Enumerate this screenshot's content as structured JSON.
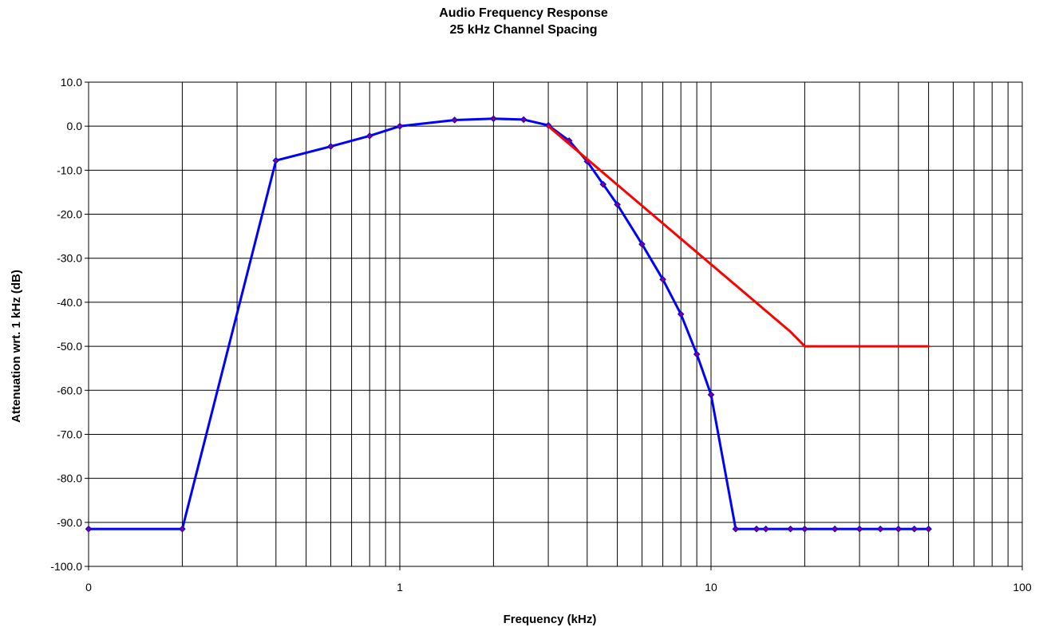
{
  "chart_data": {
    "type": "line",
    "title": "Audio Frequency Response",
    "subtitle": "25 kHz Channel Spacing",
    "xlabel": "Frequency (kHz)",
    "ylabel": "Attenuation wrt. 1 kHz (dB)",
    "x_scale": "log",
    "xlim": [
      0.1,
      100
    ],
    "ylim": [
      -100,
      10
    ],
    "x_tick_labels": [
      {
        "value": 0.1,
        "label": "0"
      },
      {
        "value": 1,
        "label": "1"
      },
      {
        "value": 10,
        "label": "10"
      },
      {
        "value": 100,
        "label": "100"
      }
    ],
    "y_ticks": [
      10,
      0,
      -10,
      -20,
      -30,
      -40,
      -50,
      -60,
      -70,
      -80,
      -90,
      -100
    ],
    "y_tick_labels": [
      "10.0",
      "0.0",
      "-10.0",
      "-20.0",
      "-30.0",
      "-40.0",
      "-50.0",
      "-60.0",
      "-70.0",
      "-80.0",
      "-90.0",
      "-100.0"
    ],
    "grid": true,
    "legend": "none",
    "series": [
      {
        "color": "#0000ff",
        "marker_color": "#800080",
        "markers": true,
        "x": [
          0.1,
          0.2,
          0.4,
          0.6,
          0.8,
          1.0,
          1.5,
          2.0,
          2.5,
          3.0,
          3.5,
          4.0,
          4.5,
          5.0,
          6.0,
          7.0,
          8.0,
          9.0,
          10.0,
          12.0,
          14.0,
          15.0,
          18.0,
          20.0,
          25.0,
          30.0,
          35.0,
          40.0,
          45.0,
          50.0
        ],
        "y": [
          -91.5,
          -91.5,
          -7.8,
          -4.6,
          -2.2,
          0.0,
          1.4,
          1.7,
          1.5,
          0.2,
          -3.3,
          -8.0,
          -13.2,
          -17.8,
          -26.8,
          -34.8,
          -42.7,
          -51.8,
          -61.0,
          -91.5,
          -91.5,
          -91.5,
          -91.5,
          -91.5,
          -91.5,
          -91.5,
          -91.5,
          -91.5,
          -91.5,
          -91.5
        ]
      },
      {
        "color": "#ff0000",
        "markers": false,
        "x": [
          3.0,
          18.0,
          20.0,
          50.0
        ],
        "y": [
          0.0,
          -46.7,
          -50.0,
          -50.0
        ]
      }
    ]
  }
}
